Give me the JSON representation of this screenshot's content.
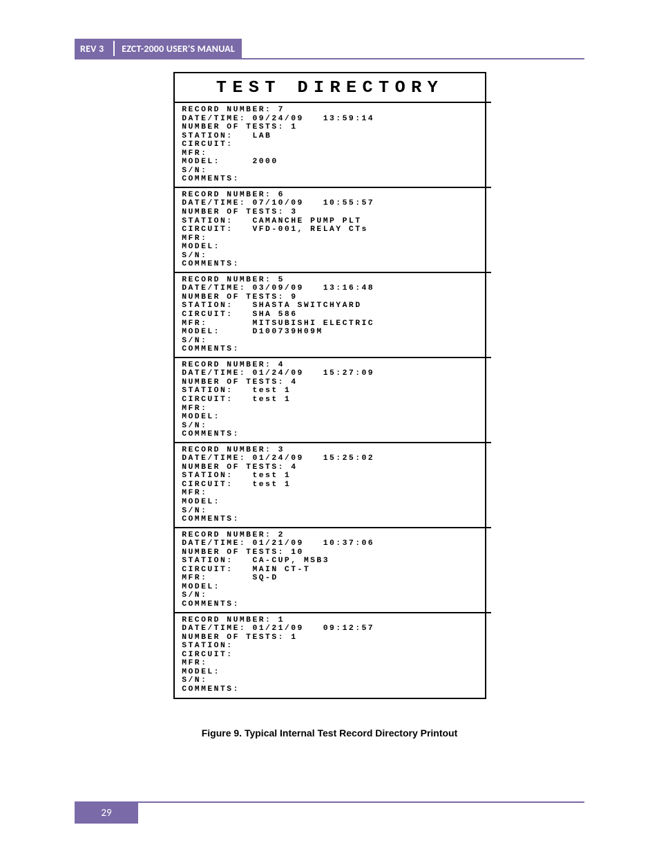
{
  "header": {
    "rev": "REV 3",
    "title": "EZCT-2000 USER'S MANUAL"
  },
  "printout": {
    "title": "TEST DIRECTORY",
    "records": [
      {
        "record_number": "7",
        "date": "09/24/09",
        "time": "13:59:14",
        "num_tests": "1",
        "station": "LAB",
        "circuit": "",
        "mfr": "",
        "model": "2000",
        "sn": "",
        "comments": ""
      },
      {
        "record_number": "6",
        "date": "07/10/09",
        "time": "10:55:57",
        "num_tests": "3",
        "station": "CAMANCHE PUMP PLT",
        "circuit": "VFD-001, RELAY CTs",
        "mfr": "",
        "model": "",
        "sn": "",
        "comments": ""
      },
      {
        "record_number": "5",
        "date": "03/09/09",
        "time": "13:16:48",
        "num_tests": "9",
        "station": "SHASTA SWITCHYARD",
        "circuit": "SHA 586",
        "mfr": "MITSUBISHI ELECTRIC",
        "model": "D100739H09M",
        "sn": "",
        "comments": ""
      },
      {
        "record_number": "4",
        "date": "01/24/09",
        "time": "15:27:09",
        "num_tests": "4",
        "station": "test 1",
        "circuit": "test 1",
        "mfr": "",
        "model": "",
        "sn": "",
        "comments": ""
      },
      {
        "record_number": "3",
        "date": "01/24/09",
        "time": "15:25:02",
        "num_tests": "4",
        "station": "test 1",
        "circuit": "test 1",
        "mfr": "",
        "model": "",
        "sn": "",
        "comments": ""
      },
      {
        "record_number": "2",
        "date": "01/21/09",
        "time": "10:37:06",
        "num_tests": "10",
        "station": "CA-CUP, MSB3",
        "circuit": "MAIN CT-T",
        "mfr": "SQ-D",
        "model": "",
        "sn": "",
        "comments": ""
      },
      {
        "record_number": "1",
        "date": "01/21/09",
        "time": "09:12:57",
        "num_tests": "1",
        "station": "",
        "circuit": "",
        "mfr": "",
        "model": "",
        "sn": "",
        "comments": ""
      }
    ]
  },
  "caption": "Figure 9. Typical Internal Test Record Directory Printout",
  "page_number": "29",
  "colors": {
    "accent": "#7a6aa8",
    "text_on_accent": "#ffffff",
    "page_bg": "#ffffff",
    "ink": "#000000"
  }
}
